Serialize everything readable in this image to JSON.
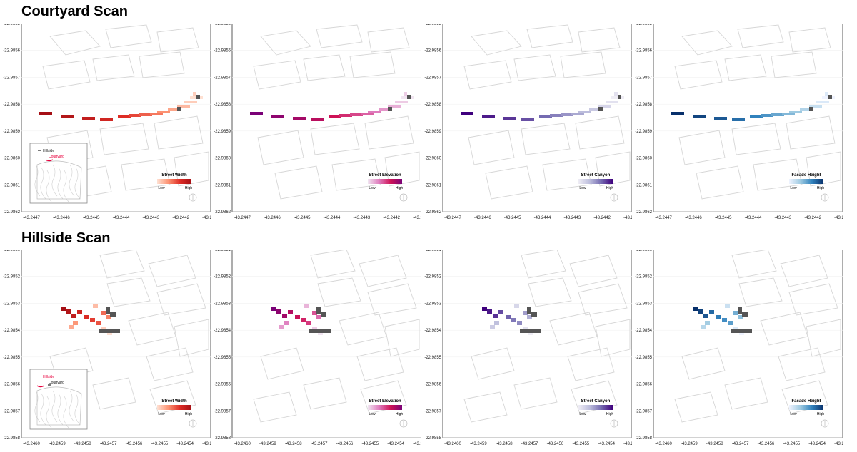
{
  "rows": [
    {
      "title": "Courtyard Scan",
      "y_ticks": [
        "-22.9855",
        "-22.9856",
        "-22.9857",
        "-22.9858",
        "-22.9859",
        "-22.9860",
        "-22.9861",
        "-22.9862"
      ],
      "x_ticks": [
        "-43.2447",
        "-43.2446",
        "-43.2445",
        "-43.2444",
        "-43.2443",
        "-43.2442",
        "-43.2441"
      ],
      "inset": {
        "labels": [
          "Hillside",
          "Courtyard"
        ],
        "highlight": "Courtyard"
      }
    },
    {
      "title": "Hillside Scan",
      "y_ticks": [
        "-22.9851",
        "-22.9852",
        "-22.9853",
        "-22.9854",
        "-22.9855",
        "-22.9856",
        "-22.9857",
        "-22.9858"
      ],
      "x_ticks": [
        "-43.2460",
        "-43.2459",
        "-43.2458",
        "-43.2457",
        "-43.2456",
        "-43.2455",
        "-43.2454",
        "-43.2453"
      ],
      "inset": {
        "labels": [
          "Hillside",
          "Courtyard"
        ],
        "highlight": "Hillside"
      }
    }
  ],
  "metrics": [
    {
      "title": "Street Width",
      "low": "Low",
      "high": "High",
      "colors": [
        "#fee0d2",
        "#fc9272",
        "#de2d26",
        "#a50f15"
      ]
    },
    {
      "title": "Street Elevation",
      "low": "Low",
      "high": "High",
      "colors": [
        "#f1e5f1",
        "#df7bbd",
        "#ce1256",
        "#7a0177"
      ]
    },
    {
      "title": "Street Canyon",
      "low": "Low",
      "high": "High",
      "colors": [
        "#efedf5",
        "#bcbddc",
        "#756bb1",
        "#3f007d"
      ]
    },
    {
      "title": "Facade Height",
      "low": "Low",
      "high": "High",
      "colors": [
        "#eff3ff",
        "#9ecae1",
        "#3182bd",
        "#08306b"
      ]
    }
  ],
  "colors": {
    "missing": "#555555",
    "building_outline": "#d6d6d6",
    "highlight": "#e8003d"
  }
}
